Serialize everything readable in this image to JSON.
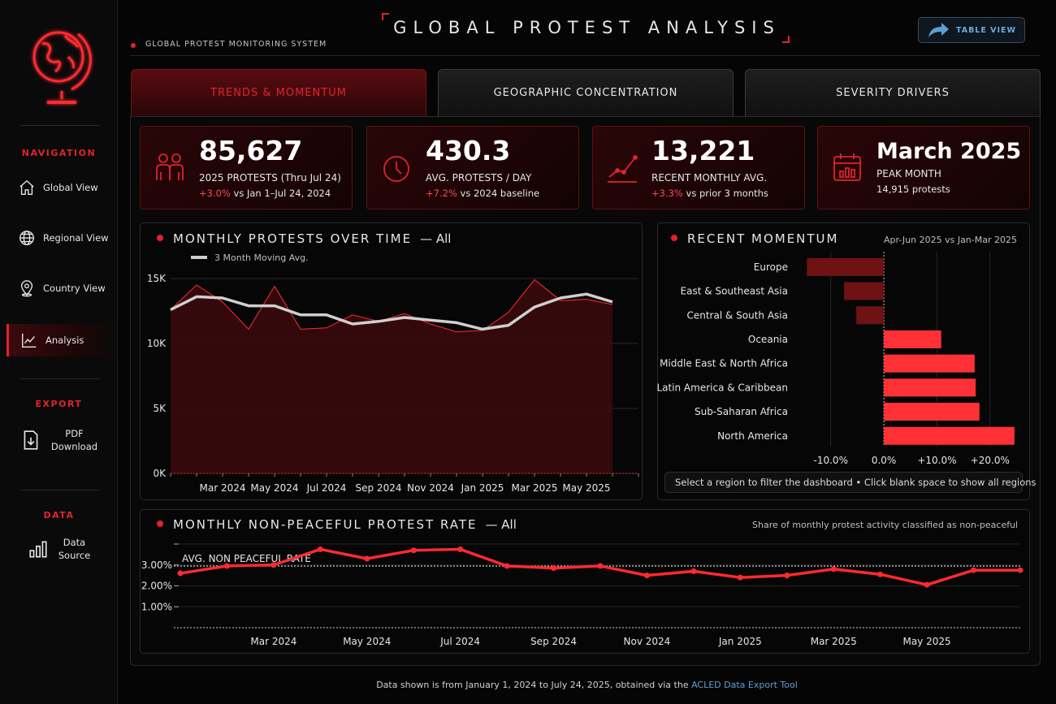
{
  "header": {
    "system_label": "GLOBAL PROTEST MONITORING SYSTEM",
    "title": "GLOBAL PROTEST ANALYSIS",
    "table_view_label": "TABLE VIEW"
  },
  "sidebar": {
    "navigation_heading": "NAVIGATION",
    "nav_items": [
      {
        "label": "Global View",
        "icon": "home-icon"
      },
      {
        "label": "Regional View",
        "icon": "globe-icon"
      },
      {
        "label": "Country View",
        "icon": "map-pin-icon"
      },
      {
        "label": "Analysis",
        "icon": "line-chart-icon",
        "active": true
      }
    ],
    "export_heading": "EXPORT",
    "pdf_label_1": "PDF",
    "pdf_label_2": "Download",
    "data_heading": "DATA",
    "data_label_1": "Data",
    "data_label_2": "Source"
  },
  "tabs": [
    {
      "label": "TRENDS & MOMENTUM",
      "active": true
    },
    {
      "label": "GEOGRAPHIC CONCENTRATION",
      "active": false
    },
    {
      "label": "SEVERITY DRIVERS",
      "active": false
    }
  ],
  "kpis": [
    {
      "value": "85,627",
      "label": "2025 PROTESTS (Thru Jul 24)",
      "delta": "+3.0%",
      "delta_text": " vs Jan 1–Jul 24, 2024",
      "icon": "people-icon"
    },
    {
      "value": "430.3",
      "label": "AVG. PROTESTS / DAY",
      "delta": "+7.2%",
      "delta_text": " vs 2024 baseline",
      "icon": "clock-icon"
    },
    {
      "value": "13,221",
      "label": "RECENT MONTHLY AVG.",
      "delta": "+3.3%",
      "delta_text": " vs prior 3 months",
      "icon": "trend-icon"
    },
    {
      "value": "March 2025",
      "label": "PEAK MONTH",
      "sub": "14,915 protests",
      "icon": "calendar-icon"
    }
  ],
  "monthly_panel": {
    "title": "MONTHLY PROTESTS OVER TIME",
    "filter": "— All",
    "legend": "3 Month Moving Avg."
  },
  "momentum_panel": {
    "title": "RECENT MOMENTUM",
    "subtitle": "Apr-Jun 2025 vs Jan-Mar 2025",
    "hint": "Select a region to filter the dashboard • Click blank space to show all regions"
  },
  "rate_panel": {
    "title": "MONTHLY NON-PEACEFUL PROTEST RATE",
    "filter": "— All",
    "subtitle": "Share of monthly protest activity classified as non-peaceful",
    "avg_label": "AVG. NON PEACEFUL RATE"
  },
  "footer": {
    "text": "Data shown is from January 1, 2024 to July 24, 2025, obtained via the ",
    "link": "ACLED Data Export Tool"
  },
  "colors": {
    "accent": "#e0242a",
    "bar_positive": "#ff3136",
    "bar_negative": "#6e1214",
    "link": "#5f9ed1"
  },
  "chart_data": [
    {
      "type": "area",
      "x": [
        "Jan 2024",
        "Feb 2024",
        "Mar 2024",
        "Apr 2024",
        "May 2024",
        "Jun 2024",
        "Jul 2024",
        "Aug 2024",
        "Sep 2024",
        "Oct 2024",
        "Nov 2024",
        "Dec 2024",
        "Jan 2025",
        "Feb 2025",
        "Mar 2025",
        "Apr 2025",
        "May 2025",
        "Jun 2025",
        "Jul 2025"
      ],
      "x_ticks": [
        "Mar 2024",
        "May 2024",
        "Jul 2024",
        "Sep 2024",
        "Nov 2024",
        "Jan 2025",
        "Mar 2025",
        "May 2025"
      ],
      "series": [
        {
          "values": [
            12600,
            14500,
            13200,
            11100,
            14400,
            11100,
            11200,
            12200,
            11700,
            12300,
            11500,
            10900,
            11000,
            12400,
            14915,
            13300,
            13400,
            13000,
            null
          ]
        },
        {
          "name": "3 Month Moving Avg.",
          "values": [
            12600,
            13600,
            13500,
            12900,
            12900,
            12200,
            12200,
            11500,
            11700,
            12000,
            11800,
            11600,
            11100,
            11400,
            12800,
            13500,
            13800,
            13200,
            null
          ]
        }
      ],
      "y_ticks": [
        "0K",
        "5K",
        "10K",
        "15K"
      ],
      "ylim": [
        0,
        15000
      ]
    },
    {
      "type": "bar",
      "orientation": "horizontal",
      "categories": [
        "Europe",
        "East & Southeast Asia",
        "Central & South Asia",
        "Oceania",
        "Middle East & North Africa",
        "Latin America & Caribbean",
        "Sub-Saharan Africa",
        "North America"
      ],
      "values": [
        -14.5,
        -7.5,
        -5.2,
        10.8,
        17.1,
        17.3,
        18.0,
        24.6
      ],
      "x_ticks": [
        "-10.0%",
        "0.0%",
        "+10.0%",
        "+20.0%"
      ],
      "xlim": [
        -17,
        26
      ]
    },
    {
      "type": "line",
      "x": [
        "Jan 2024",
        "Feb 2024",
        "Mar 2024",
        "Apr 2024",
        "May 2024",
        "Jun 2024",
        "Jul 2024",
        "Aug 2024",
        "Sep 2024",
        "Oct 2024",
        "Nov 2024",
        "Dec 2024",
        "Jan 2025",
        "Feb 2025",
        "Mar 2025",
        "Apr 2025",
        "May 2025",
        "Jun 2025",
        "Jul 2025"
      ],
      "x_ticks": [
        "Mar 2024",
        "May 2024",
        "Jul 2024",
        "Sep 2024",
        "Nov 2024",
        "Jan 2025",
        "Mar 2025",
        "May 2025"
      ],
      "series": [
        {
          "values": [
            2.6,
            2.95,
            3.0,
            3.75,
            3.3,
            3.7,
            3.75,
            2.95,
            2.85,
            2.95,
            2.5,
            2.7,
            2.4,
            2.5,
            2.8,
            2.55,
            2.05,
            2.75,
            2.75
          ]
        }
      ],
      "avg_value": 2.95,
      "y_ticks": [
        "1.00%",
        "2.00%",
        "3.00%"
      ],
      "ylim": [
        0,
        4
      ]
    }
  ]
}
